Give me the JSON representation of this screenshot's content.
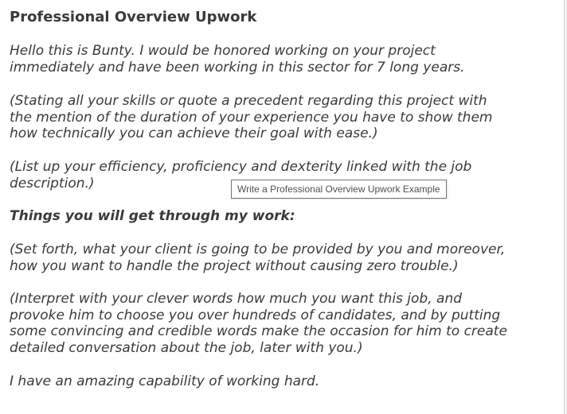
{
  "title": "Professional Overview Upwork",
  "paragraphs": [
    {
      "lines": [
        "Hello this is Bunty. I would be honored working on your project",
        "immediately and have been working in this sector for 7 long years."
      ]
    },
    {
      "lines": [
        "(Stating all your skills or quote a precedent regarding this project with",
        "the mention of the duration of your experience you have to show them",
        "how technically you can achieve their goal with ease.)"
      ]
    },
    {
      "lines": [
        "(List up your efficiency, proficiency and dexterity linked with the job",
        "description.)"
      ]
    },
    {
      "lines": [
        "Things you will get through my work:"
      ]
    },
    {
      "lines": [
        "(Set forth, what your client is going to be provided by you and moreover,",
        "how you want to handle the project without causing zero trouble.)"
      ]
    },
    {
      "lines": [
        "(Interpret with your clever words how much you want this job, and",
        "provoke him to choose you over hundreds of candidates, and by putting",
        "some convincing and credible words make the occasion for him to create",
        "detailed conversation about the job, later with you.)"
      ]
    },
    {
      "lines": [
        "I have an amazing capability of working hard."
      ]
    }
  ],
  "tooltip": "Write a Professional Overview Upwork Example"
}
